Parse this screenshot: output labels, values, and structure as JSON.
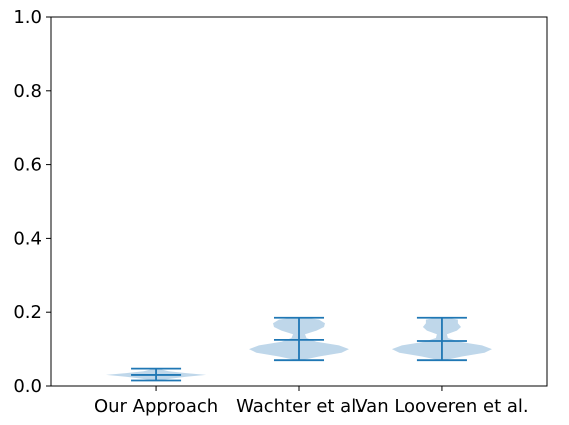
{
  "chart_data": {
    "type": "violin",
    "categories": [
      "Our Approach",
      "Wachter et al.",
      "Van Looveren et al."
    ],
    "ylim": [
      0,
      1
    ],
    "yticks": [
      0.0,
      0.2,
      0.4,
      0.6,
      0.8,
      1.0
    ],
    "ytick_labels": [
      "0.0",
      "0.2",
      "0.4",
      "0.6",
      "0.8",
      "1.0"
    ],
    "series": [
      {
        "category": "Our Approach",
        "min": 0.015,
        "median": 0.03,
        "max": 0.047,
        "density": [
          [
            0.015,
            0.05
          ],
          [
            0.02,
            0.3
          ],
          [
            0.025,
            0.6
          ],
          [
            0.03,
            1.0
          ],
          [
            0.035,
            0.6
          ],
          [
            0.04,
            0.25
          ],
          [
            0.047,
            0.05
          ]
        ]
      },
      {
        "category": "Wachter et al.",
        "min": 0.07,
        "median": 0.125,
        "max": 0.185,
        "density": [
          [
            0.07,
            0.05
          ],
          [
            0.08,
            0.4
          ],
          [
            0.09,
            0.85
          ],
          [
            0.1,
            1.0
          ],
          [
            0.11,
            0.8
          ],
          [
            0.12,
            0.35
          ],
          [
            0.13,
            0.15
          ],
          [
            0.14,
            0.12
          ],
          [
            0.15,
            0.35
          ],
          [
            0.16,
            0.5
          ],
          [
            0.17,
            0.52
          ],
          [
            0.18,
            0.4
          ],
          [
            0.185,
            0.15
          ]
        ]
      },
      {
        "category": "Van Looveren et al.",
        "min": 0.07,
        "median": 0.122,
        "max": 0.185,
        "density": [
          [
            0.07,
            0.05
          ],
          [
            0.08,
            0.4
          ],
          [
            0.09,
            0.85
          ],
          [
            0.1,
            1.0
          ],
          [
            0.11,
            0.8
          ],
          [
            0.12,
            0.35
          ],
          [
            0.13,
            0.12
          ],
          [
            0.14,
            0.1
          ],
          [
            0.15,
            0.3
          ],
          [
            0.16,
            0.38
          ],
          [
            0.17,
            0.32
          ],
          [
            0.18,
            0.32
          ],
          [
            0.185,
            0.12
          ]
        ]
      }
    ],
    "body_color": "#a9c9e3",
    "line_color": "#1f77b4",
    "grid": false,
    "title": "",
    "xlabel": "",
    "ylabel": ""
  }
}
